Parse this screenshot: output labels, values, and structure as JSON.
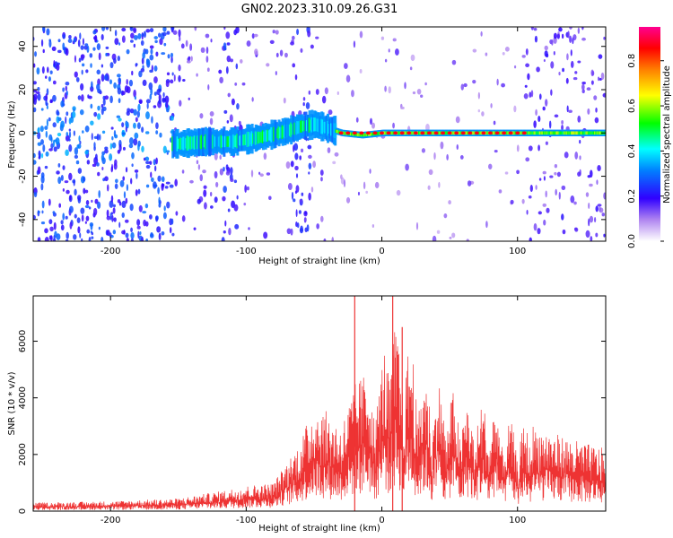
{
  "chart_data": [
    {
      "type": "heatmap",
      "title": "GN02.2023.310.09.26.G31",
      "xlabel": "Height of straight line (km)",
      "ylabel": "Frequency (Hz)",
      "xlim": [
        -257,
        165
      ],
      "ylim": [
        -50,
        49
      ],
      "xticks": [
        -200,
        -100,
        0,
        100
      ],
      "yticks": [
        -40,
        -20,
        0,
        20,
        40
      ],
      "colorbar": {
        "label": "Normalized spectral amplitude",
        "range": [
          0,
          0.95
        ],
        "ticks": [
          0.0,
          0.2,
          0.4,
          0.6,
          0.8
        ],
        "colormap": [
          "#ffffff",
          "#b085f0",
          "#3000ff",
          "#0080ff",
          "#00ffff",
          "#00ff00",
          "#ffff00",
          "#ff8000",
          "#ff0000",
          "#ff0090"
        ]
      },
      "ridge": [
        {
          "x": -150,
          "y": -5
        },
        {
          "x": -130,
          "y": -4
        },
        {
          "x": -110,
          "y": -4
        },
        {
          "x": -90,
          "y": -2
        },
        {
          "x": -70,
          "y": 1
        },
        {
          "x": -60,
          "y": 3
        },
        {
          "x": -50,
          "y": 4
        },
        {
          "x": -40,
          "y": 2
        },
        {
          "x": -30,
          "y": 0
        },
        {
          "x": -15,
          "y": -1
        },
        {
          "x": 0,
          "y": 0
        },
        {
          "x": 50,
          "y": 0
        },
        {
          "x": 100,
          "y": 0
        },
        {
          "x": 165,
          "y": 0
        }
      ]
    },
    {
      "type": "line",
      "title": "",
      "xlabel": "Height of straight line (km)",
      "ylabel": "SNR (10 * v/v)",
      "xlim": [
        -257,
        165
      ],
      "ylim": [
        0,
        7600
      ],
      "xticks": [
        -200,
        -100,
        0,
        100
      ],
      "yticks": [
        0,
        2000,
        4000,
        6000
      ],
      "color": "#ee3333",
      "envelope": [
        {
          "x": -257,
          "y": 300
        },
        {
          "x": -200,
          "y": 350
        },
        {
          "x": -150,
          "y": 450
        },
        {
          "x": -120,
          "y": 700
        },
        {
          "x": -100,
          "y": 900
        },
        {
          "x": -80,
          "y": 1000
        },
        {
          "x": -60,
          "y": 2500
        },
        {
          "x": -50,
          "y": 3800
        },
        {
          "x": -40,
          "y": 3500
        },
        {
          "x": -30,
          "y": 3000
        },
        {
          "x": -20,
          "y": 4500
        },
        {
          "x": -10,
          "y": 5000
        },
        {
          "x": 0,
          "y": 5200
        },
        {
          "x": 5,
          "y": 7600
        },
        {
          "x": 10,
          "y": 6500
        },
        {
          "x": 20,
          "y": 6200
        },
        {
          "x": 30,
          "y": 5000
        },
        {
          "x": 40,
          "y": 4600
        },
        {
          "x": 50,
          "y": 4300
        },
        {
          "x": 60,
          "y": 4000
        },
        {
          "x": 70,
          "y": 3800
        },
        {
          "x": 80,
          "y": 4000
        },
        {
          "x": 90,
          "y": 3300
        },
        {
          "x": 100,
          "y": 3000
        },
        {
          "x": 110,
          "y": 3100
        },
        {
          "x": 130,
          "y": 2700
        },
        {
          "x": 150,
          "y": 2400
        },
        {
          "x": 165,
          "y": 2200
        }
      ],
      "spikes": [
        {
          "x": -20,
          "y": 7600
        },
        {
          "x": 8,
          "y": 7600
        },
        {
          "x": 15,
          "y": 6500
        }
      ]
    }
  ]
}
